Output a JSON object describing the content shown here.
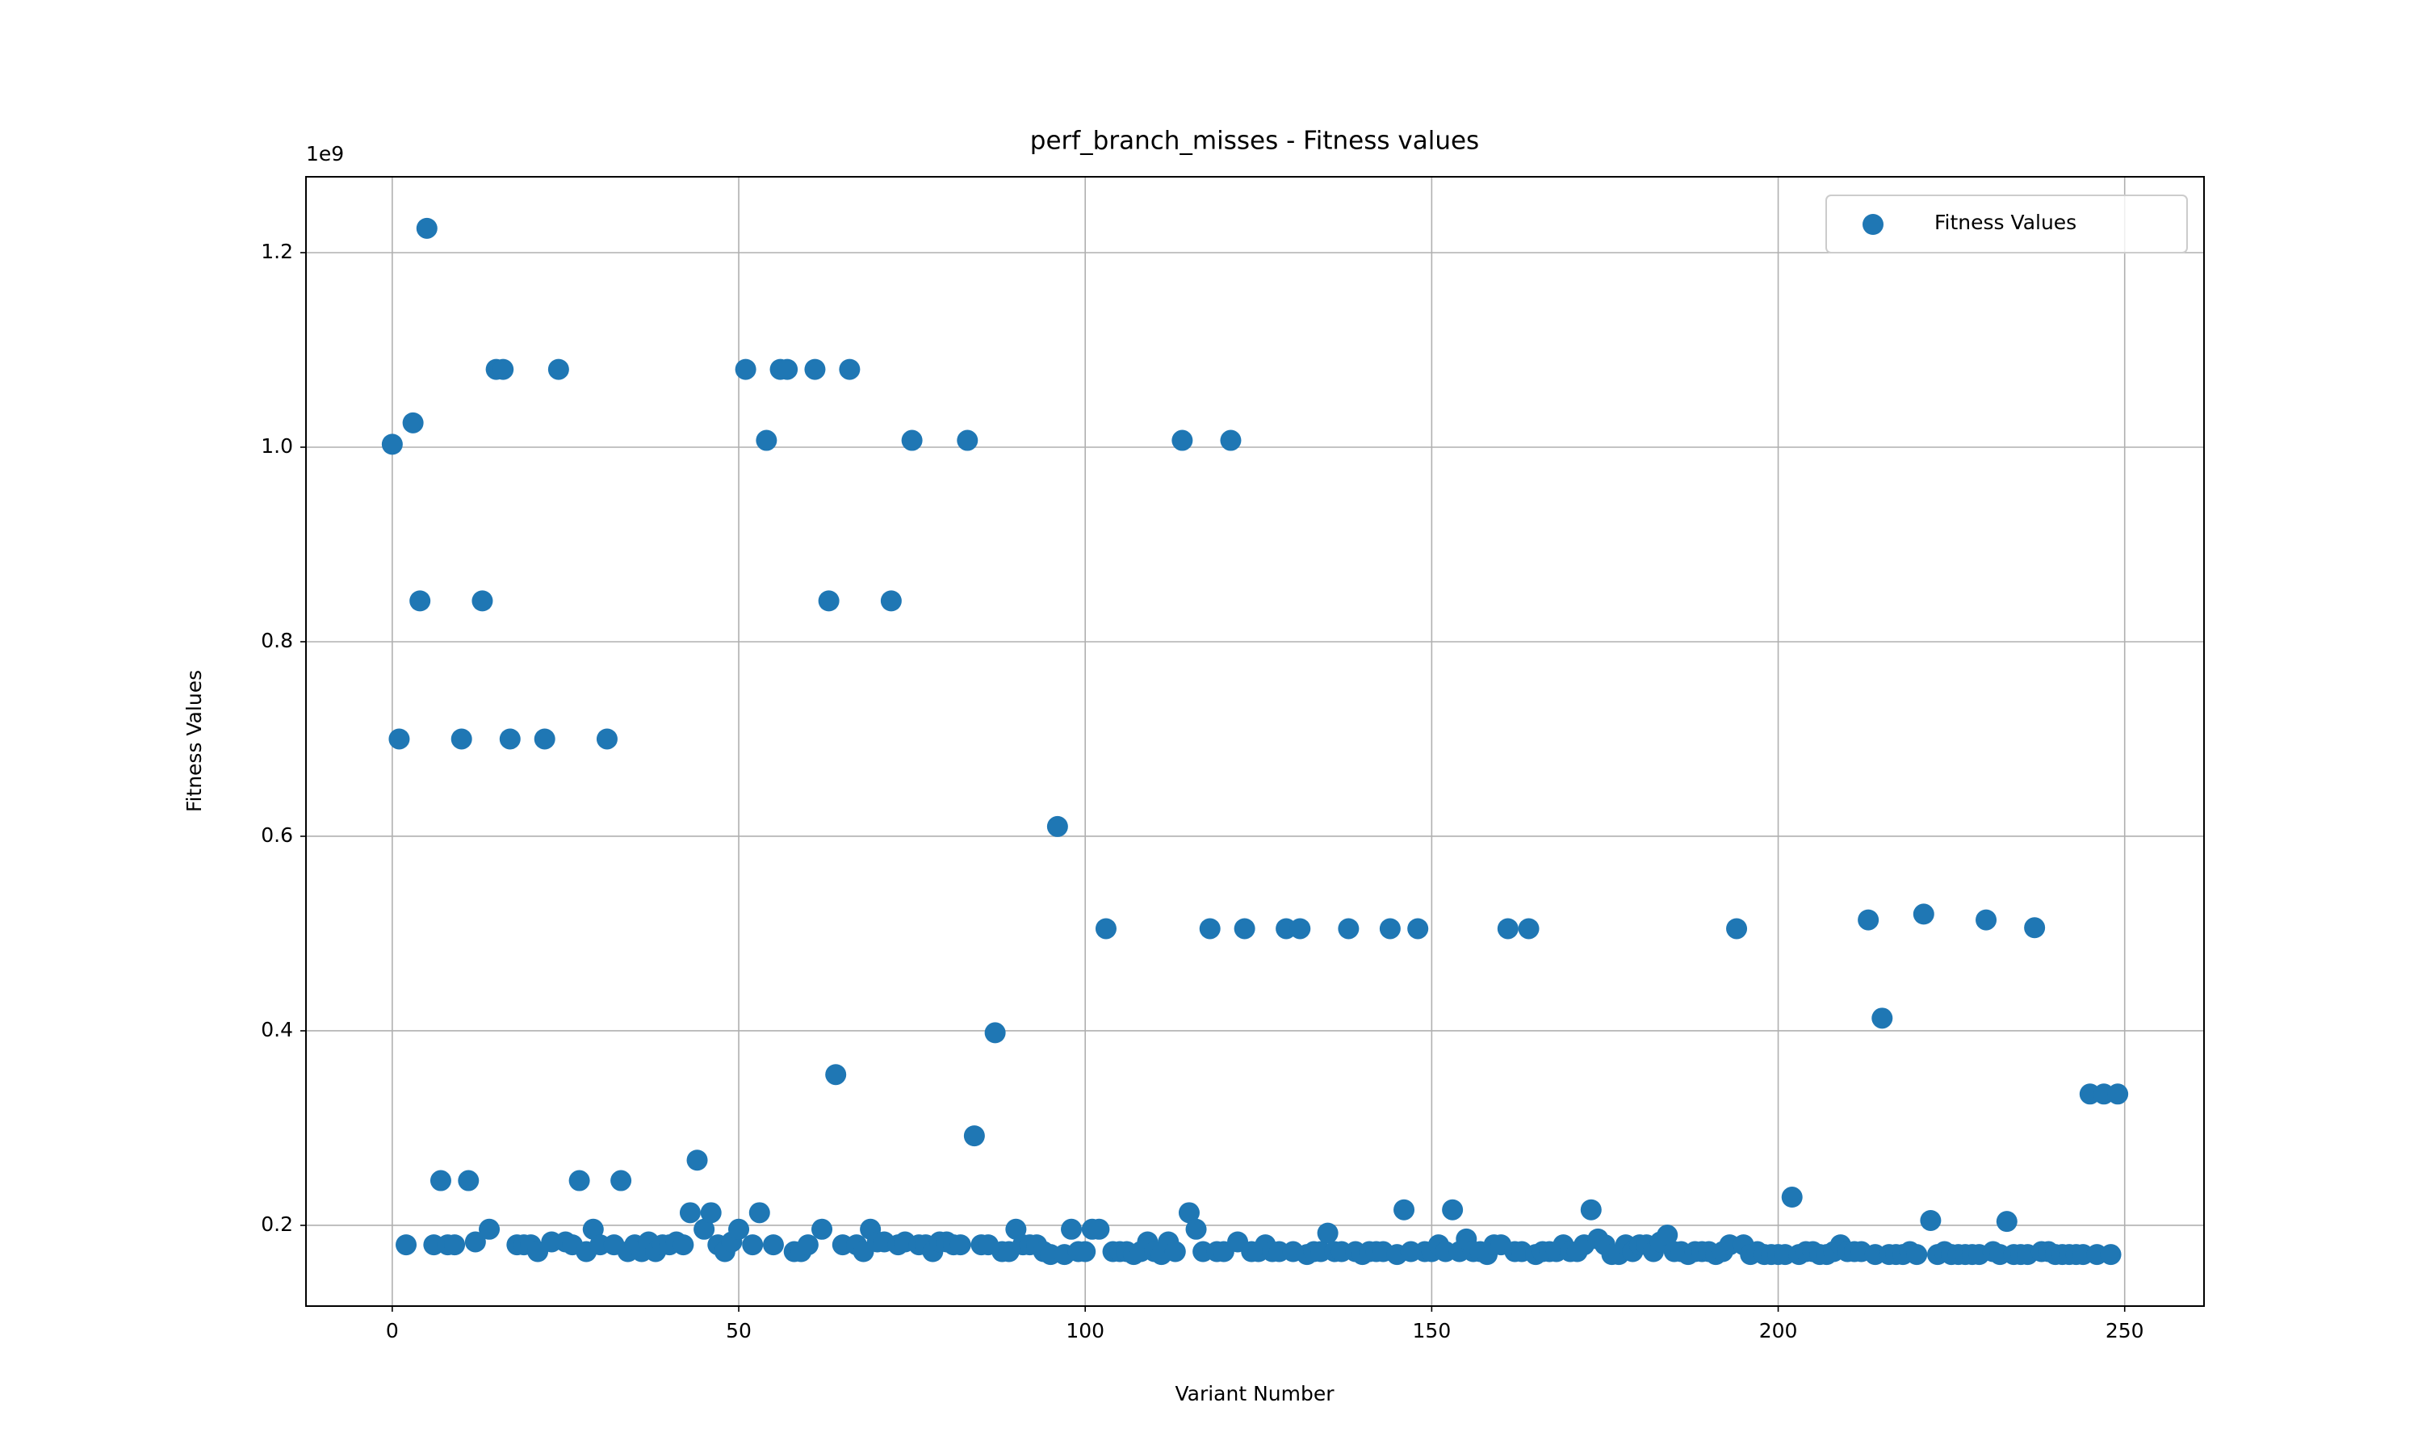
{
  "chart_data": {
    "type": "scatter",
    "title": "perf_branch_misses - Fitness values",
    "x_label": "Variant Number",
    "y_label": "Fitness Values",
    "y_offset_label": "1e9",
    "x": [
      0,
      1,
      2,
      3,
      4,
      5,
      6,
      7,
      8,
      9,
      10,
      11,
      12,
      13,
      14,
      15,
      16,
      17,
      18,
      19,
      20,
      21,
      22,
      23,
      24,
      25,
      26,
      27,
      28,
      29,
      30,
      31,
      32,
      33,
      34,
      35,
      36,
      37,
      38,
      39,
      40,
      41,
      42,
      43,
      44,
      45,
      46,
      47,
      48,
      49,
      50,
      51,
      52,
      53,
      54,
      55,
      56,
      57,
      58,
      59,
      60,
      61,
      62,
      63,
      64,
      65,
      66,
      67,
      68,
      69,
      70,
      71,
      72,
      73,
      74,
      75,
      76,
      77,
      78,
      79,
      80,
      81,
      82,
      83,
      84,
      85,
      86,
      87,
      88,
      89,
      90,
      91,
      92,
      93,
      94,
      95,
      96,
      97,
      98,
      99,
      100,
      101,
      102,
      103,
      104,
      105,
      106,
      107,
      108,
      109,
      110,
      111,
      112,
      113,
      114,
      115,
      116,
      117,
      118,
      119,
      120,
      121,
      122,
      123,
      124,
      125,
      126,
      127,
      128,
      129,
      130,
      131,
      132,
      133,
      134,
      135,
      136,
      137,
      138,
      139,
      140,
      141,
      142,
      143,
      144,
      145,
      146,
      147,
      148,
      149,
      150,
      151,
      152,
      153,
      154,
      155,
      156,
      157,
      158,
      159,
      160,
      161,
      162,
      163,
      164,
      165,
      166,
      167,
      168,
      169,
      170,
      171,
      172,
      173,
      174,
      175,
      176,
      177,
      178,
      179,
      180,
      181,
      182,
      183,
      184,
      185,
      186,
      187,
      188,
      189,
      190,
      191,
      192,
      193,
      194,
      195,
      196,
      197,
      198,
      199,
      200,
      201,
      202,
      203,
      204,
      205,
      206,
      207,
      208,
      209,
      210,
      211,
      212,
      213,
      214,
      215,
      216,
      217,
      218,
      219,
      220,
      221,
      222,
      223,
      224,
      225,
      226,
      227,
      228,
      229,
      230,
      231,
      232,
      233,
      234,
      235,
      236,
      237,
      238,
      239,
      240,
      241,
      242,
      243,
      244,
      245,
      246,
      247,
      248,
      249
    ],
    "series": [
      {
        "name": "Fitness Values",
        "color": "#1f77b4",
        "values": [
          1.003,
          0.7,
          0.18,
          1.025,
          0.842,
          1.225,
          0.18,
          0.246,
          0.18,
          0.18,
          0.7,
          0.246,
          0.183,
          0.842,
          0.196,
          1.08,
          1.08,
          0.7,
          0.18,
          0.18,
          0.18,
          0.173,
          0.7,
          0.183,
          1.08,
          0.183,
          0.18,
          0.246,
          0.173,
          0.196,
          0.18,
          0.7,
          0.18,
          0.246,
          0.173,
          0.18,
          0.173,
          0.183,
          0.173,
          0.18,
          0.18,
          0.183,
          0.18,
          0.213,
          0.267,
          0.196,
          0.213,
          0.18,
          0.173,
          0.183,
          0.196,
          1.08,
          0.18,
          0.213,
          1.007,
          0.18,
          1.08,
          1.08,
          0.173,
          0.173,
          0.18,
          1.08,
          0.196,
          0.842,
          0.355,
          0.18,
          1.08,
          0.18,
          0.173,
          0.196,
          0.183,
          0.183,
          0.842,
          0.18,
          0.183,
          1.007,
          0.18,
          0.18,
          0.173,
          0.183,
          0.183,
          0.18,
          0.18,
          1.007,
          0.292,
          0.18,
          0.18,
          0.398,
          0.173,
          0.173,
          0.196,
          0.18,
          0.18,
          0.18,
          0.173,
          0.17,
          0.61,
          0.17,
          0.196,
          0.173,
          0.173,
          0.196,
          0.196,
          0.505,
          0.173,
          0.173,
          0.173,
          0.17,
          0.173,
          0.183,
          0.173,
          0.17,
          0.183,
          0.173,
          1.007,
          0.213,
          0.196,
          0.173,
          0.505,
          0.173,
          0.173,
          1.007,
          0.183,
          0.505,
          0.173,
          0.173,
          0.18,
          0.173,
          0.173,
          0.505,
          0.173,
          0.505,
          0.17,
          0.173,
          0.173,
          0.192,
          0.173,
          0.173,
          0.505,
          0.173,
          0.17,
          0.173,
          0.173,
          0.173,
          0.505,
          0.17,
          0.216,
          0.173,
          0.505,
          0.173,
          0.173,
          0.18,
          0.173,
          0.216,
          0.173,
          0.186,
          0.173,
          0.173,
          0.17,
          0.18,
          0.18,
          0.505,
          0.173,
          0.173,
          0.505,
          0.17,
          0.173,
          0.173,
          0.173,
          0.18,
          0.173,
          0.173,
          0.18,
          0.216,
          0.186,
          0.18,
          0.17,
          0.17,
          0.18,
          0.173,
          0.18,
          0.18,
          0.173,
          0.183,
          0.19,
          0.173,
          0.173,
          0.17,
          0.173,
          0.173,
          0.173,
          0.17,
          0.173,
          0.18,
          0.505,
          0.18,
          0.17,
          0.173,
          0.17,
          0.17,
          0.17,
          0.17,
          0.229,
          0.17,
          0.173,
          0.173,
          0.17,
          0.17,
          0.173,
          0.18,
          0.173,
          0.173,
          0.173,
          0.514,
          0.17,
          0.413,
          0.17,
          0.17,
          0.17,
          0.173,
          0.17,
          0.52,
          0.205,
          0.17,
          0.173,
          0.17,
          0.17,
          0.17,
          0.17,
          0.17,
          0.514,
          0.173,
          0.17,
          0.204,
          0.17,
          0.17,
          0.17,
          0.506,
          0.173,
          0.173,
          0.17,
          0.17,
          0.17,
          0.17,
          0.17,
          0.335,
          0.17,
          0.335,
          0.17,
          0.335
        ]
      }
    ],
    "xlim": [
      -12.45,
      261.45
    ],
    "xticks": [
      0,
      50,
      100,
      150,
      200,
      250
    ],
    "ylim": [
      0.117,
      1.278
    ],
    "yticks": [
      0.2,
      0.4,
      0.6,
      0.8,
      {
        "value": 1.0,
        "label": "1.0"
      },
      1.2
    ],
    "grid": true,
    "legend": "upper right"
  }
}
